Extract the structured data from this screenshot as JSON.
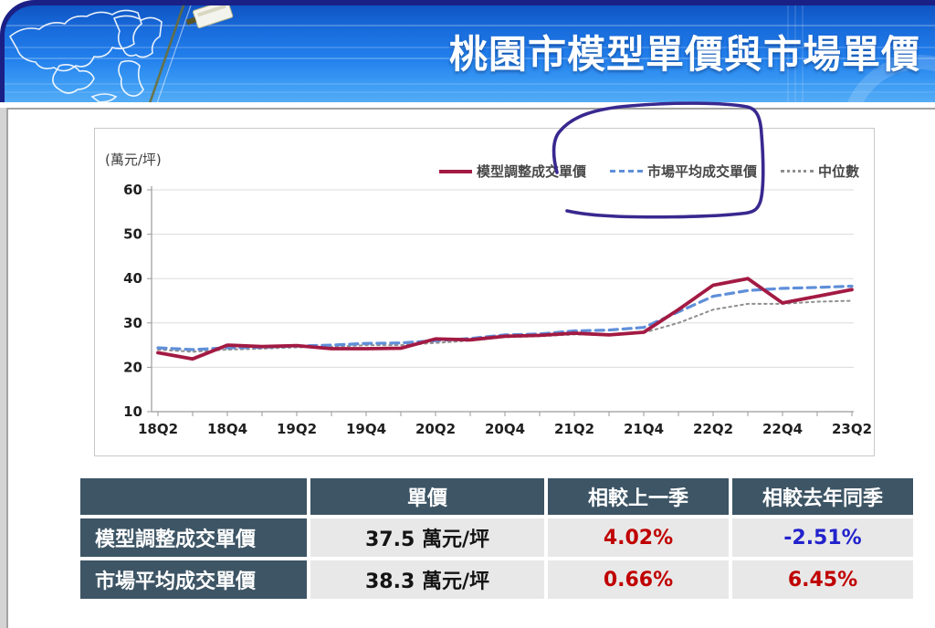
{
  "header": {
    "title": "桃園市模型單價與市場單價"
  },
  "chart": {
    "unit_label": "(萬元/坪)"
  },
  "chart_data": {
    "type": "line",
    "title": "",
    "ylabel": "(萬元/坪)",
    "ylim": [
      10,
      60
    ],
    "yticks": [
      60,
      50,
      40,
      30,
      20,
      10
    ],
    "grid": "horizontal",
    "legend_position": "top-right",
    "x": [
      "18Q2",
      "18Q3",
      "18Q4",
      "19Q1",
      "19Q2",
      "19Q3",
      "19Q4",
      "20Q1",
      "20Q2",
      "20Q3",
      "20Q4",
      "21Q1",
      "21Q2",
      "21Q3",
      "21Q4",
      "22Q1",
      "22Q2",
      "22Q3",
      "22Q4",
      "23Q1",
      "23Q2"
    ],
    "x_tick_labels": [
      "18Q2",
      "18Q4",
      "19Q2",
      "19Q4",
      "20Q2",
      "20Q4",
      "21Q2",
      "21Q4",
      "22Q2",
      "22Q4",
      "23Q2"
    ],
    "series": [
      {
        "name": "模型調整成交單價",
        "color": "#a31a43",
        "dash": "solid",
        "values": [
          23.3,
          21.9,
          25.0,
          24.7,
          24.9,
          24.2,
          24.2,
          24.3,
          26.4,
          26.2,
          27.0,
          27.2,
          27.7,
          27.3,
          27.9,
          33.0,
          38.5,
          40.0,
          34.5,
          36.0,
          37.5
        ]
      },
      {
        "name": "市場平均成交單價",
        "color": "#5f8fd9",
        "dash": "dashed",
        "values": [
          24.4,
          24.0,
          24.4,
          24.5,
          24.8,
          25.0,
          25.4,
          25.5,
          26.0,
          26.5,
          27.3,
          27.5,
          28.2,
          28.4,
          29.0,
          32.5,
          36.0,
          37.3,
          37.8,
          38.0,
          38.3
        ]
      },
      {
        "name": "中位數",
        "color": "#8f8f8f",
        "dash": "dotted",
        "values": [
          24.0,
          23.5,
          24.0,
          24.2,
          24.5,
          24.6,
          25.0,
          25.0,
          25.5,
          26.0,
          26.8,
          27.0,
          27.4,
          27.3,
          27.8,
          30.0,
          33.0,
          34.3,
          34.3,
          34.8,
          35.0
        ]
      }
    ]
  },
  "annotation": {
    "shape": "hand-drawn-loop-around-market-average-legend",
    "color": "#39288f"
  },
  "table": {
    "columns": [
      "",
      "單價",
      "相較上一季",
      "相較去年同季"
    ],
    "rows": [
      {
        "label": "模型調整成交單價",
        "price": "37.5 萬元/坪",
        "qoq": "4.02%",
        "yoy": "-2.51%",
        "qoq_color": "#c00000",
        "yoy_color": "#2222cc"
      },
      {
        "label": "市場平均成交單價",
        "price": "38.3 萬元/坪",
        "qoq": "0.66%",
        "yoy": "6.45%",
        "qoq_color": "#c00000",
        "yoy_color": "#c00000"
      }
    ]
  },
  "colors": {
    "banner_gradient_top": "#0f55c4",
    "banner_gradient_bottom": "#55acf6",
    "banner_border": "#1b2086",
    "table_header_bg": "#3d5565",
    "table_cell_bg": "#e8e8e8",
    "gridline": "#dcdcdc",
    "axis": "#9a9a9a",
    "tick_label": "#1f1f1f"
  }
}
